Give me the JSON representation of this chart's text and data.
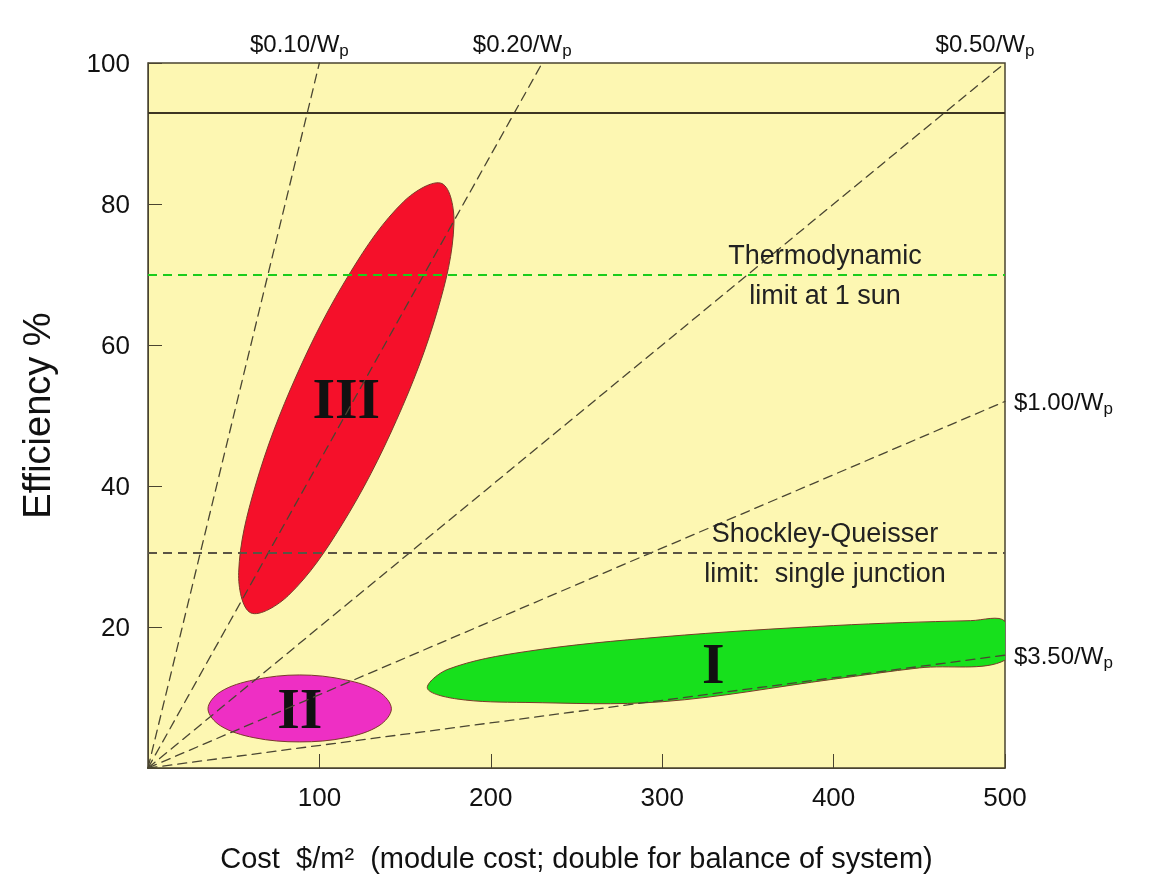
{
  "chart_data": {
    "type": "line",
    "xlabel": "Cost  $/m²  (module cost; double for balance of system)",
    "ylabel": "Efficiency %",
    "xlim": [
      0,
      500
    ],
    "xticks": [
      100,
      200,
      300,
      400,
      500
    ],
    "ylim": [
      0,
      100
    ],
    "yticks": [
      20,
      40,
      60,
      80,
      100
    ],
    "series": [
      {
        "type": "area",
        "name": "III",
        "color": "#f5102a",
        "x": [
          171.5,
          178.5,
          168.9,
          144.9,
          113.1,
          82.0,
          60.0,
          52.9,
          62.6,
          86.5,
          118.3,
          149.4
        ],
        "values": [
          82.9,
          77.2,
          64.9,
          49.3,
          34.5,
          24.5,
          22.0,
          27.7,
          40.0,
          55.6,
          70.4,
          80.4
        ]
      },
      {
        "type": "area",
        "name": "II",
        "color": "#ee2fc4",
        "x": [
          142,
          134.8,
          115.3,
          88.5,
          61.8,
          42.2,
          35,
          42.2,
          61.8,
          88.5,
          115.3,
          134.8
        ],
        "values": [
          8.4,
          10.8,
          12.5,
          13.2,
          12.5,
          10.8,
          8.4,
          6.0,
          4.3,
          3.7,
          4.3,
          6.0
        ]
      },
      {
        "type": "area",
        "name": "I",
        "color": "#17e01c",
        "x": [
          163,
          175,
          220,
          300,
          400,
          480,
          500,
          500,
          450,
          400,
          300,
          220,
          180
        ],
        "values": [
          11.3,
          14,
          16.5,
          18.6,
          20.2,
          20.9,
          20.8,
          15.3,
          14.2,
          12.6,
          9.4,
          9.3,
          9.8
        ]
      },
      {
        "name": "$0.10/W$_{p}$",
        "color": "#4a4632",
        "x": [
          0,
          100
        ],
        "values": [
          0,
          100
        ]
      },
      {
        "name": "$0.20/W$_{p}$",
        "color": "#4a4632",
        "x": [
          0,
          230
        ],
        "values": [
          0,
          100
        ]
      },
      {
        "name": "$0.50/W$_{p}$",
        "color": "#4a4632",
        "x": [
          0,
          500
        ],
        "values": [
          0,
          100
        ]
      },
      {
        "name": "$1.00/W$_{p}$",
        "color": "#4a4632",
        "x": [
          0,
          500
        ],
        "values": [
          0,
          52
        ]
      },
      {
        "name": "$3.50/W$_{p}$",
        "color": "#4a4632",
        "x": [
          0,
          500
        ],
        "values": [
          0,
          16
        ]
      }
    ],
    "line_style": "dashed",
    "marker": "none",
    "ref_lines": [
      {
        "axis": "y",
        "value": 93,
        "label": null,
        "color": "#3d3522",
        "line_style": "solid"
      },
      {
        "axis": "y",
        "value": 70,
        "label": "Thermodynamic limit at 1 sun",
        "color": "#1ccc1c",
        "line_style": "dashed"
      },
      {
        "axis": "y",
        "value": 30.5,
        "label": "Shockley-Queisser limit:  single junction",
        "color": "#5a5444",
        "line_style": "dashed"
      }
    ]
  }
}
